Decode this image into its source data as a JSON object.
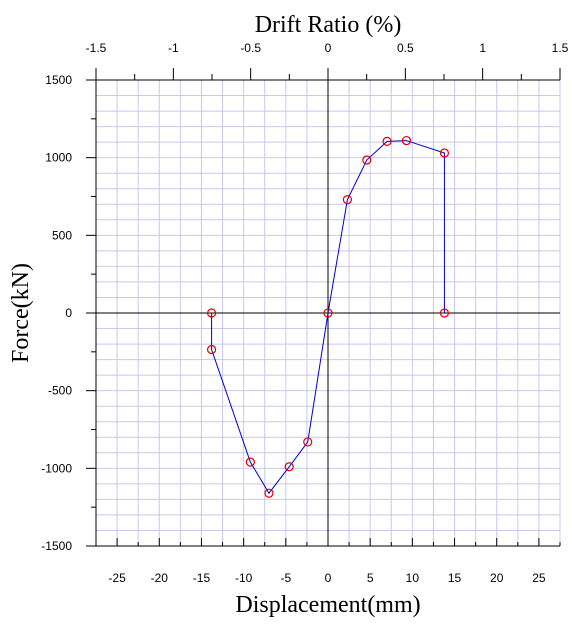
{
  "chart_data": {
    "type": "scatter",
    "title": "Drift Ratio (%)",
    "xlabel": "Displacement(mm)",
    "ylabel": "Force(kN)",
    "x_range": [
      -27.5,
      27.5
    ],
    "y_range": [
      -1500,
      1500
    ],
    "x_ticks": [
      -25,
      -20,
      -15,
      -10,
      -5,
      0,
      5,
      10,
      15,
      20,
      25
    ],
    "y_ticks": [
      -1500,
      -1000,
      -500,
      0,
      500,
      1000,
      1500
    ],
    "x_tick_labels": [
      "-25",
      "-20",
      "-15",
      "-10",
      "-5",
      "0",
      "5",
      "10",
      "15",
      "20",
      "25"
    ],
    "y_tick_labels": [
      "-1500",
      "-1000",
      "-500",
      "0",
      "500",
      "1000",
      "1500"
    ],
    "top_axis": {
      "ticks": [
        -1.5,
        -1,
        -0.5,
        0,
        0.5,
        1,
        1.5
      ],
      "tick_labels": [
        "-1.5",
        "-1",
        "-0.5",
        "0",
        "0.5",
        "1",
        "1.5"
      ]
    },
    "grid": true,
    "series": [
      {
        "points": [
          [
            -13.8,
            0
          ],
          [
            -13.8,
            -235
          ],
          [
            -9.2,
            -960
          ],
          [
            -7.0,
            -1160
          ],
          [
            -4.6,
            -990
          ],
          [
            -2.4,
            -830
          ],
          [
            0,
            0
          ],
          [
            2.3,
            730
          ],
          [
            4.6,
            985
          ],
          [
            7.0,
            1105
          ],
          [
            9.3,
            1110
          ],
          [
            13.8,
            1030
          ],
          [
            13.8,
            0
          ]
        ]
      }
    ],
    "colors": {
      "line": "#0000cc",
      "marker": "#dd0000",
      "grid": "#c8c8ee"
    }
  }
}
